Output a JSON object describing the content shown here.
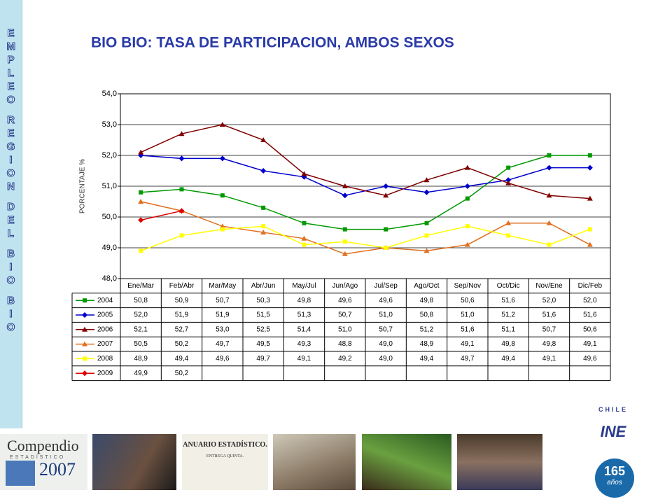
{
  "sidebar": [
    "EMPLEO",
    "REGION",
    "DEL",
    "BIO",
    "BIO"
  ],
  "chart_data": {
    "type": "line",
    "title": "BIO BIO: TASA DE PARTICIPACION, AMBOS SEXOS",
    "y_label": "PORCENTAJE %",
    "categories": [
      "Ene/Mar",
      "Feb/Abr",
      "Mar/May",
      "Abr/Jun",
      "May/Jul",
      "Jun/Ago",
      "Jul/Sep",
      "Ago/Oct",
      "Sep/Nov",
      "Oct/Dic",
      "Nov/Ene",
      "Dic/Feb"
    ],
    "series": [
      {
        "name": "2004",
        "color": "#009900",
        "marker": "square",
        "values": [
          50.8,
          50.9,
          50.7,
          50.3,
          49.8,
          49.6,
          49.6,
          49.8,
          50.6,
          51.6,
          52.0,
          52.0
        ],
        "value_labels": [
          "50,8",
          "50,9",
          "50,7",
          "50,3",
          "49,8",
          "49,6",
          "49,6",
          "49,8",
          "50,6",
          "51,6",
          "52,0",
          "52,0"
        ]
      },
      {
        "name": "2005",
        "color": "#0000cc",
        "marker": "diamond",
        "values": [
          52.0,
          51.9,
          51.9,
          51.5,
          51.3,
          50.7,
          51.0,
          50.8,
          51.0,
          51.2,
          51.6,
          51.6
        ],
        "value_labels": [
          "52,0",
          "51,9",
          "51,9",
          "51,5",
          "51,3",
          "50,7",
          "51,0",
          "50,8",
          "51,0",
          "51,2",
          "51,6",
          "51,6"
        ]
      },
      {
        "name": "2006",
        "color": "#800000",
        "marker": "triangle",
        "values": [
          52.1,
          52.7,
          53.0,
          52.5,
          51.4,
          51.0,
          50.7,
          51.2,
          51.6,
          51.1,
          50.7,
          50.6
        ],
        "value_labels": [
          "52,1",
          "52,7",
          "53,0",
          "52,5",
          "51,4",
          "51,0",
          "50,7",
          "51,2",
          "51,6",
          "51,1",
          "50,7",
          "50,6"
        ]
      },
      {
        "name": "2007",
        "color": "#e07020",
        "marker": "triangle",
        "values": [
          50.5,
          50.2,
          49.7,
          49.5,
          49.3,
          48.8,
          49.0,
          48.9,
          49.1,
          49.8,
          49.8,
          49.1
        ],
        "value_labels": [
          "50,5",
          "50,2",
          "49,7",
          "49,5",
          "49,3",
          "48,8",
          "49,0",
          "48,9",
          "49,1",
          "49,8",
          "49,8",
          "49,1"
        ]
      },
      {
        "name": "2008",
        "color": "#ffff00",
        "marker": "square",
        "values": [
          48.9,
          49.4,
          49.6,
          49.7,
          49.1,
          49.2,
          49.0,
          49.4,
          49.7,
          49.4,
          49.1,
          49.6
        ],
        "value_labels": [
          "48,9",
          "49,4",
          "49,6",
          "49,7",
          "49,1",
          "49,2",
          "49,0",
          "49,4",
          "49,7",
          "49,4",
          "49,1",
          "49,6"
        ]
      },
      {
        "name": "2009",
        "color": "#dd0000",
        "marker": "diamond",
        "values": [
          49.9,
          50.2,
          null,
          null,
          null,
          null,
          null,
          null,
          null,
          null,
          null,
          null
        ],
        "value_labels": [
          "49,9",
          "50,2",
          null,
          null,
          null,
          null,
          null,
          null,
          null,
          null,
          null,
          null
        ]
      }
    ],
    "ylim": [
      48,
      54
    ],
    "yticks": [
      {
        "value": 48,
        "label": "48,0"
      },
      {
        "value": 49,
        "label": "49,0"
      },
      {
        "value": 50,
        "label": "50,0"
      },
      {
        "value": 51,
        "label": "51,0"
      },
      {
        "value": 52,
        "label": "52,0"
      },
      {
        "value": 53,
        "label": "53,0"
      },
      {
        "value": 54,
        "label": "54,0"
      }
    ],
    "grid": true
  },
  "footer": {
    "compendio": "Compendio",
    "estadistico": "ESTADÍSTICO",
    "year": "2007",
    "anuario": "ANUARIO ESTADÍSTICO.",
    "entrega": "ENTREGA QUINTA.",
    "chile": "CHILE",
    "ine": "INE",
    "anios_num": "165",
    "anios": "años"
  }
}
